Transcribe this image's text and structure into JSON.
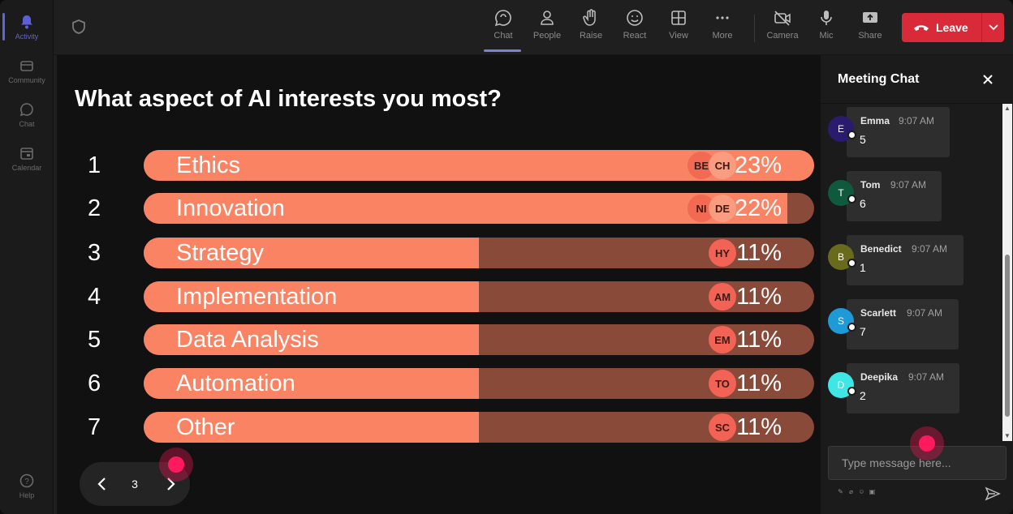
{
  "rail": {
    "items": [
      {
        "label": "Activity",
        "icon": "bell-icon",
        "active": true
      },
      {
        "label": "Community",
        "icon": "community-icon",
        "active": false
      },
      {
        "label": "Chat",
        "icon": "chat-icon",
        "active": false
      },
      {
        "label": "Calendar",
        "icon": "calendar-icon",
        "active": false
      }
    ],
    "help": {
      "label": "Help",
      "icon": "help-icon"
    }
  },
  "toolbar": {
    "chat": "Chat",
    "people": "People",
    "raise": "Raise",
    "react": "React",
    "view": "View",
    "more": "More",
    "camera": "Camera",
    "mic": "Mic",
    "share": "Share",
    "leave": "Leave"
  },
  "poll": {
    "question": "What aspect of AI interests you most?",
    "options": [
      {
        "num": "1",
        "label": "Ethics",
        "percent": "23%",
        "fill": 100,
        "avatars": [
          "BE",
          "CH"
        ]
      },
      {
        "num": "2",
        "label": "Innovation",
        "percent": "22%",
        "fill": 96,
        "avatars": [
          "NI",
          "DE"
        ]
      },
      {
        "num": "3",
        "label": "Strategy",
        "percent": "11%",
        "fill": 50,
        "avatars": [
          "HY"
        ]
      },
      {
        "num": "4",
        "label": "Implementation",
        "percent": "11%",
        "fill": 50,
        "avatars": [
          "AM"
        ]
      },
      {
        "num": "5",
        "label": "Data Analysis",
        "percent": "11%",
        "fill": 50,
        "avatars": [
          "EM"
        ]
      },
      {
        "num": "6",
        "label": "Automation",
        "percent": "11%",
        "fill": 50,
        "avatars": [
          "TO"
        ]
      },
      {
        "num": "7",
        "label": "Other",
        "percent": "11%",
        "fill": 50,
        "avatars": [
          "SC"
        ]
      }
    ],
    "page": "3"
  },
  "chat": {
    "title": "Meeting Chat",
    "messages": [
      {
        "initial": "E",
        "name": "Emma",
        "time": "9:07 AM",
        "text": "5",
        "color": "#2a1b6e"
      },
      {
        "initial": "T",
        "name": "Tom",
        "time": "9:07 AM",
        "text": "6",
        "color": "#0f5a3c"
      },
      {
        "initial": "B",
        "name": "Benedict",
        "time": "9:07 AM",
        "text": "1",
        "color": "#6a6a1c"
      },
      {
        "initial": "S",
        "name": "Scarlett",
        "time": "9:07 AM",
        "text": "7",
        "color": "#1e9ad6"
      },
      {
        "initial": "D",
        "name": "Deepika",
        "time": "9:07 AM",
        "text": "2",
        "color": "#3ee6e6"
      }
    ],
    "composer_placeholder": "Type message here..."
  }
}
